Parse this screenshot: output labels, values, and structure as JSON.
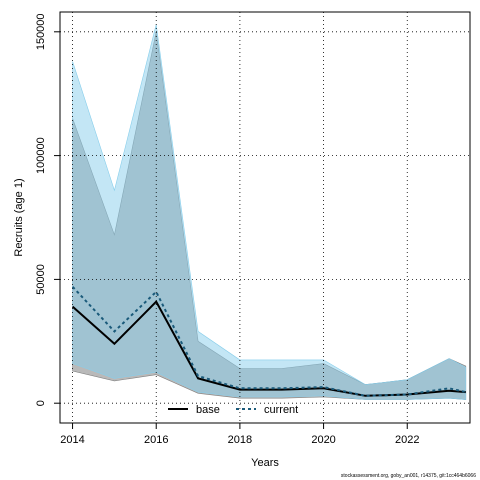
{
  "chart_data": {
    "type": "line",
    "xlabel": "Years",
    "ylabel": "Recruits (age 1)",
    "xlim": [
      2013.7,
      2023.5
    ],
    "ylim": [
      -8000,
      158000
    ],
    "x_ticks": [
      2014,
      2016,
      2018,
      2020,
      2022
    ],
    "y_ticks": [
      0,
      50000,
      100000,
      150000
    ],
    "y_tick_labels": [
      "0",
      "50000",
      "100000",
      "150000"
    ],
    "grid": true,
    "legend_position": "bottom-center",
    "footnote": "stockassessment.org, goby_an001, r14375, git:1cc464b6066",
    "series": [
      {
        "name": "base",
        "color": "#000000",
        "linestyle": "solid",
        "band_color": "#808080",
        "x": [
          2014,
          2015,
          2016,
          2017,
          2018,
          2019,
          2020,
          2021,
          2022,
          2023,
          2023.4
        ],
        "y": [
          39000,
          24000,
          41000,
          10000,
          5500,
          5500,
          6000,
          3000,
          3500,
          5000,
          4500
        ],
        "lower": [
          13000,
          9000,
          11500,
          4000,
          2000,
          2000,
          2500,
          1500,
          1500,
          2000,
          1500
        ],
        "upper": [
          115000,
          68000,
          150000,
          25000,
          14000,
          14000,
          16000,
          7500,
          9500,
          18000,
          15000
        ]
      },
      {
        "name": "current",
        "color": "#1a5a7a",
        "linestyle": "dotted",
        "band_color": "#87ceeb",
        "x": [
          2014,
          2015,
          2016,
          2017,
          2018,
          2019,
          2020,
          2021,
          2022,
          2023,
          2023.4
        ],
        "y": [
          47000,
          29000,
          45000,
          11000,
          6000,
          6000,
          6500,
          3000,
          3500,
          6000,
          4500
        ],
        "lower": [
          16000,
          10000,
          12500,
          4500,
          2500,
          2500,
          3000,
          1500,
          1500,
          2000,
          1500
        ],
        "upper": [
          138000,
          86000,
          153000,
          29000,
          17500,
          17500,
          17500,
          7500,
          9500,
          18000,
          14500
        ]
      }
    ]
  }
}
